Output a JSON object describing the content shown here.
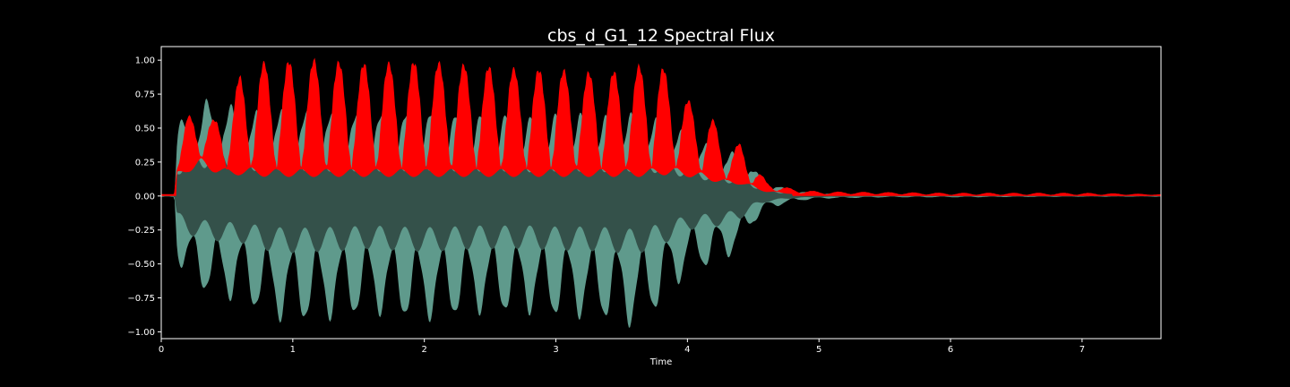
{
  "chart_data": {
    "type": "area",
    "title": "cbs_d_G1_12 Spectral Flux",
    "xlabel": "Time",
    "ylabel": "",
    "xlim": [
      0,
      7.6
    ],
    "ylim": [
      -1.05,
      1.1
    ],
    "x_ticks": [
      0,
      1,
      2,
      3,
      4,
      5,
      6,
      7
    ],
    "x_tick_labels": [
      "0",
      "1",
      "2",
      "3",
      "4",
      "5",
      "6",
      "7"
    ],
    "y_ticks": [
      1.0,
      0.75,
      0.5,
      0.25,
      0.0,
      -0.25,
      -0.5,
      -0.75,
      -1.0
    ],
    "y_tick_labels": [
      "1.00",
      "0.75",
      "0.50",
      "0.25",
      "0.00",
      "−0.25",
      "−0.50",
      "−0.75",
      "−1.00"
    ],
    "grid": false,
    "colors": {
      "background": "#000000",
      "frame": "#ffffff",
      "waveform_light": "#5f9a8c",
      "waveform_dark": "#34514a",
      "flux": "#ff0000"
    },
    "series": [
      {
        "name": "",
        "kind": "waveform",
        "x": [
          0,
          0.1,
          0.12,
          0.2,
          0.3,
          0.4,
          0.5,
          0.6,
          0.8,
          1.0,
          1.2,
          1.4,
          1.6,
          1.8,
          2.0,
          2.2,
          2.4,
          2.6,
          2.8,
          3.0,
          3.2,
          3.4,
          3.6,
          3.8,
          4.0,
          4.2,
          4.3,
          4.4,
          4.5,
          4.6,
          4.8,
          5.0,
          5.5,
          6.0,
          7.0,
          7.6
        ],
        "upper": [
          0.01,
          0.01,
          0.5,
          0.62,
          0.65,
          0.75,
          0.68,
          0.6,
          0.62,
          0.62,
          0.6,
          0.6,
          0.6,
          0.6,
          0.62,
          0.6,
          0.6,
          0.6,
          0.58,
          0.6,
          0.6,
          0.58,
          0.6,
          0.55,
          0.45,
          0.35,
          0.3,
          0.35,
          0.2,
          0.1,
          0.04,
          0.02,
          0.01,
          0.01,
          0.005,
          0.005
        ],
        "lower": [
          -0.01,
          -0.01,
          -0.45,
          -0.62,
          -0.68,
          -0.72,
          -0.75,
          -0.75,
          -0.88,
          -0.92,
          -0.9,
          -0.88,
          -0.85,
          -0.88,
          -0.9,
          -0.88,
          -0.85,
          -0.85,
          -0.85,
          -0.88,
          -0.88,
          -0.9,
          -0.95,
          -0.8,
          -0.55,
          -0.5,
          -0.45,
          -0.38,
          -0.2,
          -0.1,
          -0.04,
          -0.02,
          -0.01,
          -0.01,
          -0.005,
          -0.005
        ]
      },
      {
        "name": "",
        "kind": "spectral_flux",
        "x": [
          0,
          0.1,
          0.12,
          0.2,
          0.3,
          0.4,
          0.5,
          0.6,
          0.8,
          1.0,
          1.2,
          1.4,
          1.6,
          1.8,
          2.0,
          2.2,
          2.4,
          2.6,
          2.8,
          3.0,
          3.2,
          3.4,
          3.6,
          3.7,
          3.8,
          4.0,
          4.2,
          4.3,
          4.4,
          4.5,
          4.6,
          4.8,
          5.0,
          5.5,
          6.0,
          7.0,
          7.6
        ],
        "peak": [
          0.01,
          0.01,
          0.38,
          0.58,
          0.6,
          0.55,
          0.62,
          0.88,
          0.98,
          0.98,
          0.99,
          0.97,
          0.96,
          0.97,
          0.98,
          0.96,
          0.95,
          0.93,
          0.92,
          0.92,
          0.9,
          0.9,
          0.92,
          1.0,
          0.95,
          0.7,
          0.55,
          0.35,
          0.38,
          0.25,
          0.1,
          0.05,
          0.03,
          0.025,
          0.02,
          0.02,
          0.01
        ],
        "trough": [
          0.01,
          0.01,
          0.18,
          0.25,
          0.28,
          0.25,
          0.2,
          0.22,
          0.2,
          0.2,
          0.2,
          0.2,
          0.2,
          0.2,
          0.2,
          0.2,
          0.2,
          0.2,
          0.2,
          0.2,
          0.2,
          0.2,
          0.2,
          0.2,
          0.22,
          0.2,
          0.15,
          0.12,
          0.12,
          0.08,
          0.04,
          0.02,
          0.01,
          0.01,
          0.005,
          0.005,
          0.005
        ]
      }
    ]
  }
}
